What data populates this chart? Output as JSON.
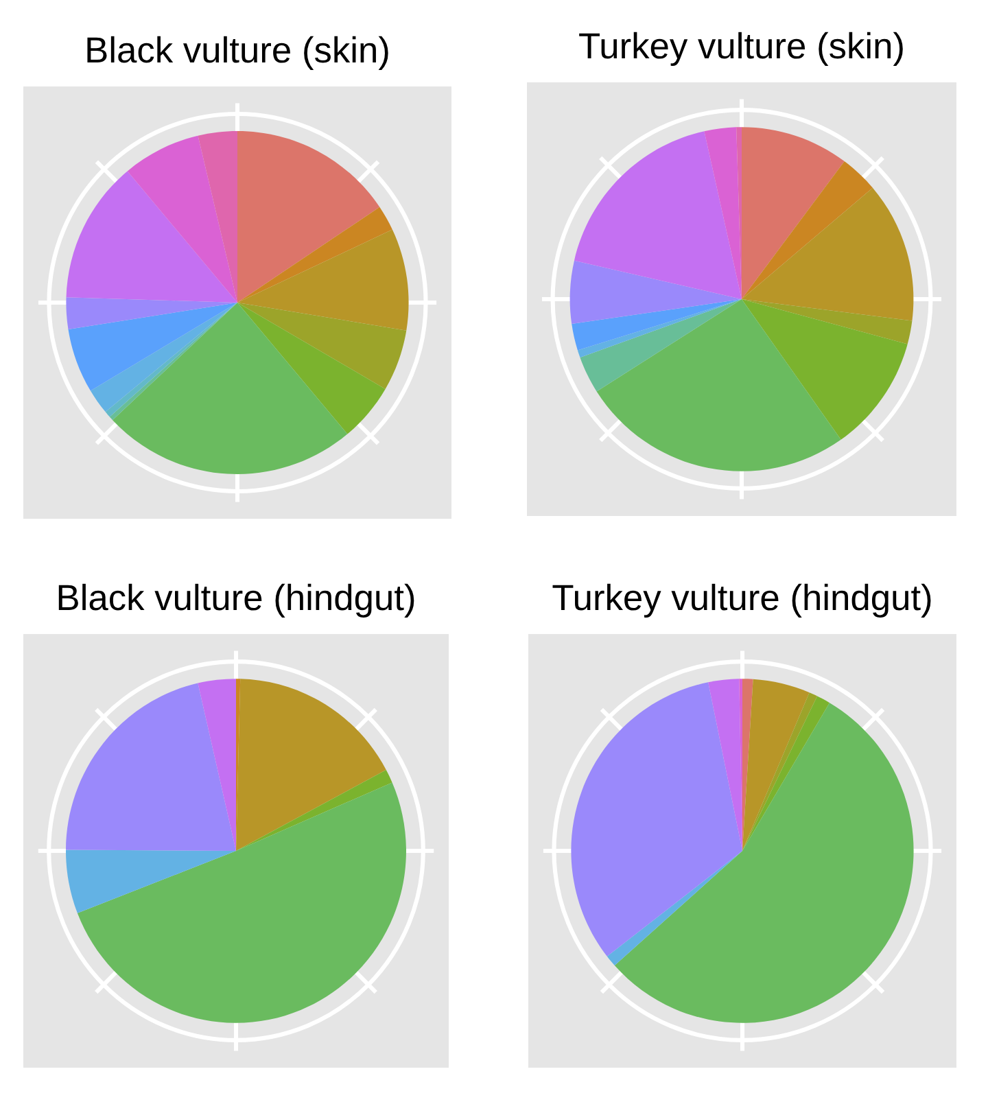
{
  "chart_data": [
    {
      "type": "pie",
      "title": "Black vulture (skin)",
      "grid": true,
      "categories": [
        null,
        null,
        null,
        null,
        null,
        null,
        null,
        null,
        null,
        null,
        null,
        null,
        null,
        null
      ],
      "values": [
        15.6,
        2.4,
        9.6,
        5.8,
        5.5,
        24.1,
        0.4,
        0.6,
        2.4,
        6.1,
        3.0,
        13.4,
        7.4,
        3.7
      ],
      "colors": [
        "#dc756a",
        "#cb8622",
        "#b89628",
        "#9ca42a",
        "#7bb32e",
        "#6abb5f",
        "#68be98",
        "#63b9c9",
        "#63b2e4",
        "#5aa1fc",
        "#9a89fb",
        "#c470f2",
        "#da62d4",
        "#df66ad"
      ]
    },
    {
      "type": "pie",
      "title": "Turkey vulture (skin)",
      "grid": true,
      "categories": [
        null,
        null,
        null,
        null,
        null,
        null,
        null,
        null,
        null,
        null,
        null,
        null,
        null
      ],
      "values": [
        10.2,
        3.6,
        13.2,
        2.2,
        11.0,
        25.8,
        3.5,
        0.7,
        2.5,
        5.9,
        17.9,
        3.0,
        0.5
      ],
      "colors": [
        "#dc756a",
        "#cb8622",
        "#b89628",
        "#9ca42a",
        "#7bb32e",
        "#6abb5f",
        "#68be98",
        "#63b2e4",
        "#5aa1fc",
        "#9a89fb",
        "#c470f2",
        "#da62d4",
        "#df66ad"
      ]
    },
    {
      "type": "pie",
      "title": "Black vulture (hindgut)",
      "grid": true,
      "categories": [
        null,
        null,
        null,
        null,
        null,
        null,
        null
      ],
      "values": [
        0.4,
        16.8,
        1.3,
        50.6,
        6.0,
        21.3,
        3.6
      ],
      "colors": [
        "#cb8622",
        "#b89628",
        "#7bb32e",
        "#6abb5f",
        "#63b2e4",
        "#9a89fb",
        "#c470f2"
      ]
    },
    {
      "type": "pie",
      "title": "Turkey vulture (hindgut)",
      "grid": true,
      "categories": [
        null,
        null,
        null,
        null,
        null,
        null,
        null,
        null,
        null
      ],
      "values": [
        1.0,
        5.4,
        0.8,
        1.3,
        54.9,
        1.1,
        32.3,
        2.9,
        0.3
      ],
      "colors": [
        "#dc756a",
        "#b89628",
        "#9ca42a",
        "#7bb32e",
        "#6abb5f",
        "#63b2e4",
        "#9a89fb",
        "#c470f2",
        "#da62d4"
      ]
    }
  ]
}
